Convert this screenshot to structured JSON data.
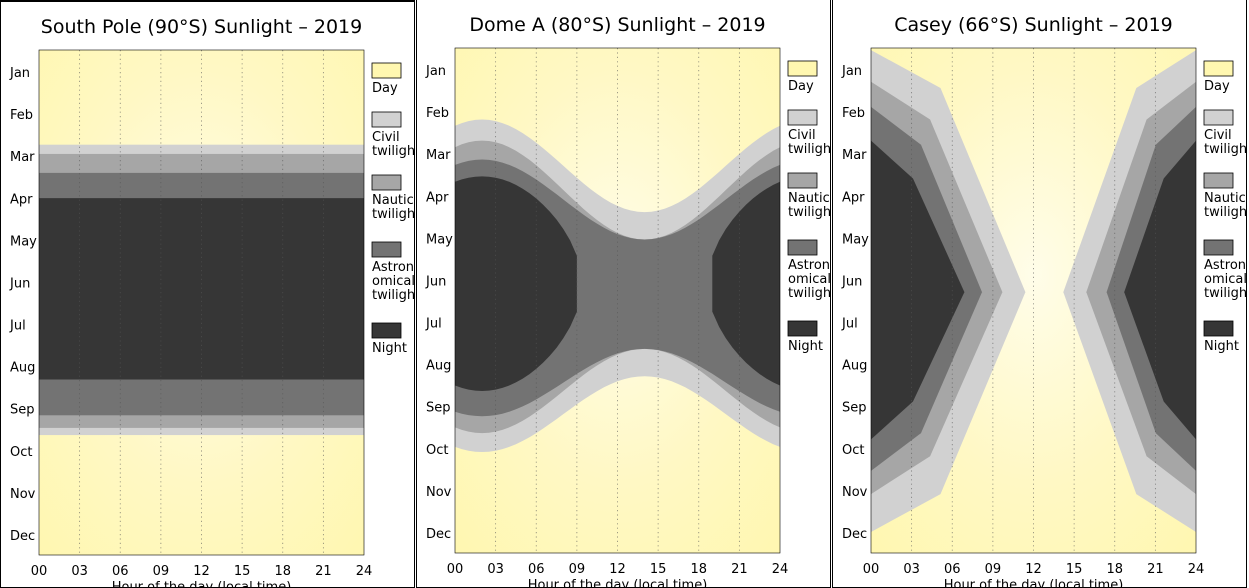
{
  "legend_items": [
    {
      "label": "Day",
      "color": "#fff7b0"
    },
    {
      "label": "Civil twilight",
      "color": "#d1d1d1"
    },
    {
      "label": "Nautical twilight",
      "color": "#a6a6a6"
    },
    {
      "label": "Astronomical twilight",
      "color": "#737373"
    },
    {
      "label": "Night",
      "color": "#363636"
    }
  ],
  "chart_data": [
    {
      "type": "area",
      "title": "South Pole (90°S) Sunlight – 2019",
      "xlabel": "Hour of the day (local time)",
      "ylabel": "",
      "xlim": [
        0,
        24
      ],
      "x_ticks": [
        "00",
        "03",
        "06",
        "09",
        "12",
        "15",
        "18",
        "21",
        "24"
      ],
      "months": [
        "Jan",
        "Feb",
        "Mar",
        "Apr",
        "May",
        "Jun",
        "Jul",
        "Aug",
        "Sep",
        "Oct",
        "Nov",
        "Dec"
      ],
      "grid": "vertical dotted lines every 3 hours",
      "legend": "right",
      "bands_by_date_month_index": {
        "civil_twilight": [
          2.25,
          9.15
        ],
        "nautical_twilight": [
          2.47,
          8.98
        ],
        "astronomical_twilight": [
          2.92,
          8.68
        ],
        "night": [
          3.52,
          7.83
        ]
      }
    },
    {
      "type": "area",
      "title": "Dome A (80°S) Sunlight – 2019",
      "xlabel": "Hour of the day (local time)",
      "ylabel": "",
      "xlim": [
        0,
        24
      ],
      "x_ticks": [
        "00",
        "03",
        "06",
        "09",
        "12",
        "15",
        "18",
        "21",
        "24"
      ],
      "months": [
        "Jan",
        "Feb",
        "Mar",
        "Apr",
        "May",
        "Jun",
        "Jul",
        "Aug",
        "Sep",
        "Oct",
        "Nov",
        "Dec"
      ],
      "grid": "vertical dotted lines every 3 hours",
      "legend": "right",
      "darkness_edge_hour": 2,
      "darkness_spans_month_index": {
        "civil_twilight": {
          "start": 1.7,
          "end": 9.6,
          "midday_start": 3.9,
          "midday_end": 7.8
        },
        "nautical_twilight": {
          "start": 2.2,
          "end": 9.15,
          "midday_start": 4.55,
          "midday_end": 7.15
        },
        "astronomical_twilight": {
          "start": 2.65,
          "end": 8.75,
          "midday_start": 4.55,
          "midday_end": 7.15
        },
        "night": {
          "start": 3.05,
          "end": 8.15,
          "midday_start": 5.35,
          "midday_end": 5.45
        }
      }
    },
    {
      "type": "area",
      "title": "Casey (66°S) Sunlight – 2019",
      "xlabel": "Hour of the day (local time)",
      "ylabel": "",
      "xlim": [
        0,
        24
      ],
      "x_ticks": [
        "00",
        "03",
        "06",
        "09",
        "12",
        "15",
        "18",
        "21",
        "24"
      ],
      "months": [
        "Jan",
        "Feb",
        "Mar",
        "Apr",
        "May",
        "Jun",
        "Jul",
        "Aug",
        "Sep",
        "Oct",
        "Nov",
        "Dec"
      ],
      "grid": "vertical dotted lines every 3 hours",
      "legend": "right",
      "tips_by_type_hours": {
        "civil_twilight": 11.4,
        "nautical_twilight": 9.7,
        "astronomical_twilight": 8.2,
        "night": 6.9
      },
      "tips_mirrored_hours": {
        "civil_twilight": 14.2,
        "nautical_twilight": 15.9,
        "astronomical_twilight": 17.4,
        "night": 18.7
      },
      "darkness_spans_month_index": {
        "civil_twilight": [
          0.05,
          11.5
        ],
        "nautical_twilight": [
          0.8,
          10.6
        ],
        "astronomical_twilight": [
          1.4,
          10.05
        ],
        "night": [
          2.2,
          9.3
        ]
      }
    }
  ]
}
